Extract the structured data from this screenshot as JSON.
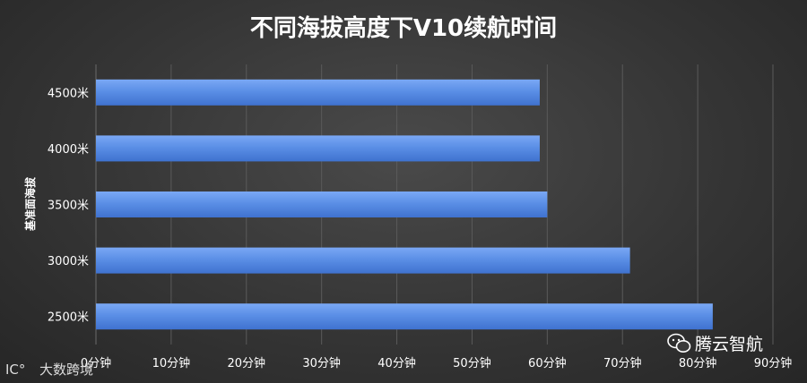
{
  "chart_data": {
    "type": "bar",
    "orientation": "horizontal",
    "title": "不同海拔高度下V10续航时间",
    "xlabel": "",
    "ylabel": "基准面海拔",
    "categories": [
      "2500米",
      "3000米",
      "3500米",
      "4000米",
      "4500米"
    ],
    "values": [
      82,
      71,
      60,
      59,
      59
    ],
    "xlim": [
      0,
      90
    ],
    "xticks": [
      0,
      10,
      20,
      30,
      40,
      50,
      60,
      70,
      80,
      90
    ],
    "xtick_labels": [
      "0分钟",
      "10分钟",
      "20分钟",
      "30分钟",
      "40分钟",
      "50分钟",
      "60分钟",
      "70分钟",
      "80分钟",
      "90分钟"
    ],
    "grid": true,
    "legend": "none",
    "bar_color": "#5b8fe6",
    "background_color": "#3c3c3c"
  },
  "watermarks": {
    "left_text": "大数跨境",
    "left_logo": "IC°",
    "right_text": "腾云智航",
    "right_icon": "wechat-icon"
  }
}
